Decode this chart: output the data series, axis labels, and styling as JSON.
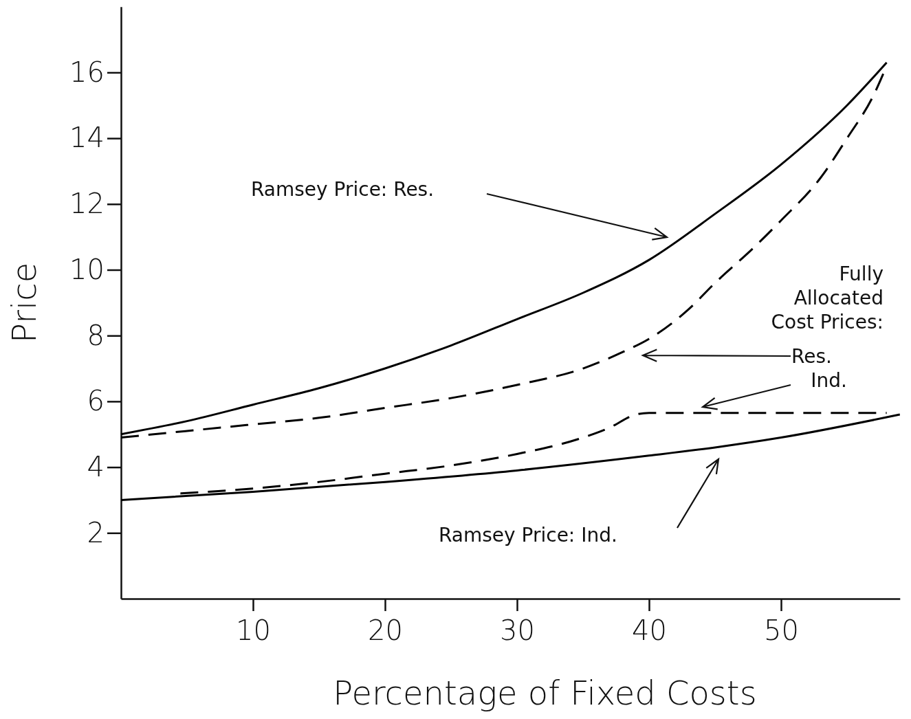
{
  "chart_data": {
    "type": "line",
    "xlabel": "Percentage of Fixed Costs",
    "ylabel": "Price",
    "xlim": [
      0,
      59
    ],
    "ylim": [
      0,
      18
    ],
    "xticks": [
      10,
      20,
      30,
      40,
      50
    ],
    "yticks": [
      2,
      4,
      6,
      8,
      10,
      12,
      14,
      16
    ],
    "grid": false,
    "marker": "none",
    "series": [
      {
        "color": "#000000",
        "line_style": "solid",
        "x": [
          0,
          5,
          10,
          15,
          20,
          25,
          30,
          35,
          40,
          45,
          50,
          55,
          58
        ],
        "values": [
          5.0,
          5.4,
          5.9,
          6.4,
          7.0,
          7.7,
          8.5,
          9.3,
          10.3,
          11.7,
          13.2,
          15.0,
          16.3
        ]
      },
      {
        "color": "#000000",
        "line_style": "dashed",
        "x": [
          0,
          5,
          10,
          15,
          20,
          25,
          30,
          35,
          38,
          40,
          43,
          45,
          48,
          50,
          53,
          55,
          57,
          58
        ],
        "values": [
          4.9,
          5.1,
          5.3,
          5.5,
          5.8,
          6.1,
          6.5,
          7.0,
          7.5,
          7.9,
          8.8,
          9.6,
          10.7,
          11.5,
          12.8,
          14.0,
          15.3,
          16.2
        ]
      },
      {
        "color": "#000000",
        "line_style": "dashed",
        "x": [
          4.5,
          10,
          15,
          20,
          25,
          30,
          35,
          37,
          39,
          40,
          45,
          50,
          55,
          58
        ],
        "values": [
          3.2,
          3.35,
          3.55,
          3.8,
          4.05,
          4.4,
          4.9,
          5.2,
          5.6,
          5.65,
          5.65,
          5.65,
          5.65,
          5.65
        ]
      },
      {
        "color": "#000000",
        "line_style": "solid",
        "x": [
          0,
          10,
          20,
          30,
          40,
          45,
          50,
          59
        ],
        "values": [
          3.0,
          3.25,
          3.55,
          3.9,
          4.35,
          4.6,
          4.9,
          5.6
        ]
      }
    ],
    "annotations": [
      "Ramsey Price: Res.",
      "Fully\nAllocated\nCost Prices:",
      "Res.",
      "Ind.",
      "Ramsey Price: Ind."
    ]
  }
}
